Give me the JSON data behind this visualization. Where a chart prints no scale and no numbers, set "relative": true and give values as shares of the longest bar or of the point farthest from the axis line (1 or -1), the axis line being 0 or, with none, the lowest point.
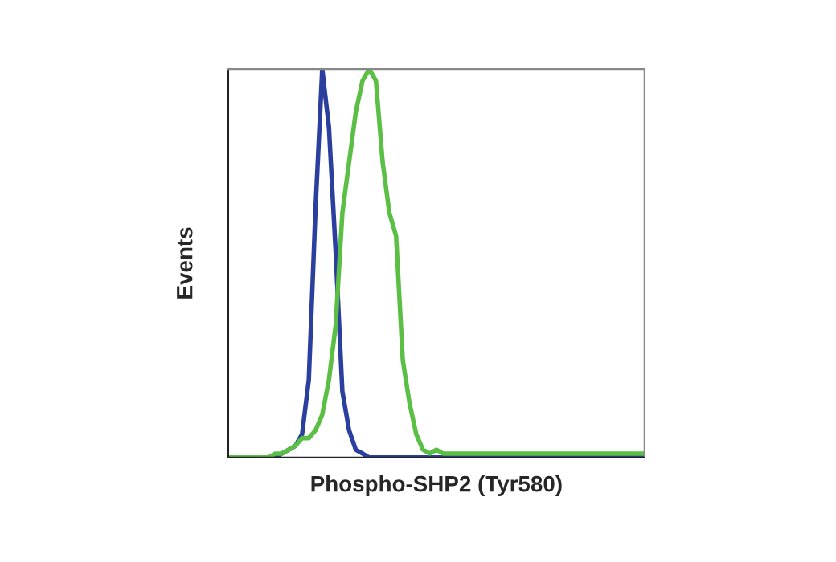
{
  "chart_data": {
    "type": "line",
    "relative": true,
    "xlabel": "Phospho-SHP2 (Tyr580)",
    "ylabel": "Events",
    "categories": [
      null,
      null,
      null,
      null,
      null,
      null,
      null,
      null,
      null,
      null,
      null,
      null,
      null,
      null,
      null,
      null,
      null,
      null,
      null,
      null,
      null,
      null,
      null,
      null,
      null,
      null,
      null,
      null,
      null,
      null,
      null,
      null,
      null,
      null,
      null,
      null,
      null,
      null,
      null,
      null,
      null,
      null,
      null,
      null,
      null,
      null,
      null,
      null,
      null,
      null,
      null,
      null,
      null,
      null,
      null,
      null,
      null,
      null,
      null,
      null,
      null,
      null,
      null
    ],
    "series": [
      {
        "color": "#2b3f9e",
        "values": [
          null,
          null,
          null,
          null,
          null,
          0,
          0,
          0,
          0.01,
          0.02,
          0.03,
          0.06,
          0.2,
          0.64,
          1.0,
          0.85,
          0.53,
          0.17,
          0.07,
          0.02,
          0.01,
          0,
          0,
          0,
          0,
          0,
          0,
          0,
          0,
          0,
          0,
          0,
          0,
          0,
          0,
          0,
          0,
          0,
          0,
          0,
          0,
          0,
          0,
          0,
          0,
          0,
          0,
          0,
          0,
          0,
          0,
          0,
          0,
          0,
          0,
          0,
          0,
          0,
          0,
          0,
          0,
          0,
          0
        ]
      },
      {
        "color": "#5cbf45",
        "values": [
          0,
          0,
          0,
          0,
          0,
          0,
          0,
          0.01,
          0.01,
          0.02,
          0.03,
          0.05,
          0.05,
          0.07,
          0.11,
          0.2,
          0.34,
          0.63,
          0.76,
          0.89,
          0.97,
          1.0,
          0.97,
          0.76,
          0.63,
          0.57,
          0.25,
          0.14,
          0.06,
          0.02,
          0.01,
          0.02,
          0.01,
          0.01,
          0.01,
          0.01,
          0.01,
          0.01,
          0.01,
          0.01,
          0.01,
          0.01,
          0.01,
          0.01,
          0.01,
          0.01,
          0.01,
          0.01,
          0.01,
          0.01,
          0.01,
          0.01,
          0.01,
          0.01,
          0.01,
          0.01,
          0.01,
          0.01,
          0.01,
          0.01,
          0.01,
          0.01,
          0.01
        ]
      }
    ]
  }
}
